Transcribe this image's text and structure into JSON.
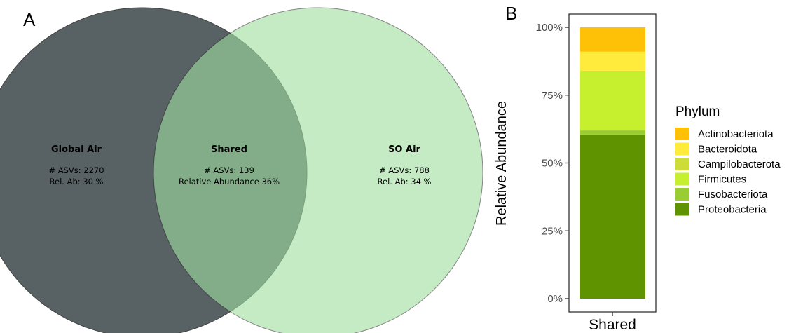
{
  "panels": {
    "a": "A",
    "b": "B"
  },
  "venn": {
    "colors": {
      "left": "#4a5558",
      "right": "#9fdfa0"
    },
    "sets": [
      {
        "title": "Global Air",
        "line1": "# ASVs: 2270",
        "line2": "Rel. Ab: 30 %"
      },
      {
        "title": "Shared",
        "line1": "# ASVs: 139",
        "line2": "Relative Abundance 36%"
      },
      {
        "title": "SO Air",
        "line1": "# ASVs: 788",
        "line2": "Rel. Ab: 34 %"
      }
    ]
  },
  "chart_data": {
    "type": "bar",
    "stacked": true,
    "categories": [
      "Shared"
    ],
    "ylabel": "Relative Abundance",
    "ylim": [
      0,
      1
    ],
    "yticks": [
      "0%",
      "25%",
      "50%",
      "75%",
      "100%"
    ],
    "legend_title": "Phylum",
    "legend_position": "right",
    "series": [
      {
        "name": "Actinobacteriota",
        "color": "#ffc107",
        "values": [
          0.09
        ]
      },
      {
        "name": "Bacteroidota",
        "color": "#ffeb3b",
        "values": [
          0.07
        ]
      },
      {
        "name": "Campilobacterota",
        "color": "#cddc39",
        "values": [
          0.002
        ]
      },
      {
        "name": "Firmicutes",
        "color": "#c6ef2e",
        "values": [
          0.218
        ]
      },
      {
        "name": "Fusobacteriota",
        "color": "#9acd32",
        "values": [
          0.015
        ]
      },
      {
        "name": "Proteobacteria",
        "color": "#5f9400",
        "values": [
          0.605
        ]
      }
    ]
  }
}
